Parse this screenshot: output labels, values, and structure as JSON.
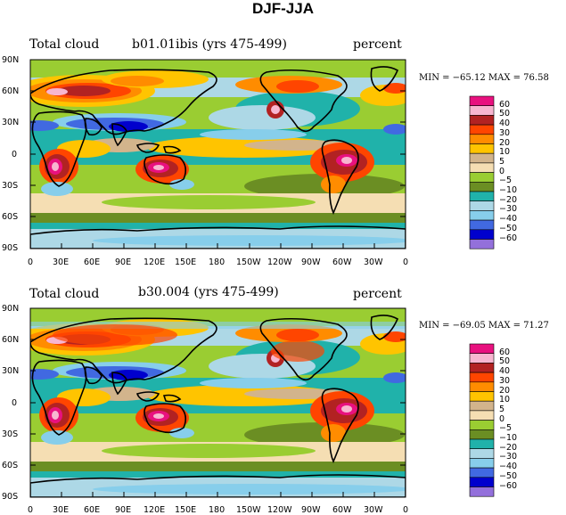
{
  "title": "DJF-JJA",
  "panels": [
    {
      "left_title": "Total cloud",
      "center_title": "b01.01ibis (yrs 475-499)",
      "right_title": "percent",
      "stats": "MIN = −65.12 MAX =   76.58"
    },
    {
      "left_title": "Total cloud",
      "center_title": "b30.004 (yrs 475-499)",
      "right_title": "percent",
      "stats": "MIN = −69.05 MAX =   71.27"
    }
  ],
  "lat_labels": [
    "90N",
    "60N",
    "30N",
    "0",
    "30S",
    "60S",
    "90S"
  ],
  "lon_labels": [
    "0",
    "30E",
    "60E",
    "90E",
    "120E",
    "150E",
    "180",
    "150W",
    "120W",
    "90W",
    "60W",
    "30W",
    "0"
  ],
  "colorbar": {
    "levels": [
      "60",
      "50",
      "40",
      "30",
      "20",
      "10",
      "5",
      "0",
      "−5",
      "−10",
      "−20",
      "−30",
      "−40",
      "−50",
      "−60"
    ],
    "colors": [
      "#e8117f",
      "#f7b6d0",
      "#b22222",
      "#ff4500",
      "#ff8c00",
      "#ffc400",
      "#d2b48c",
      "#f5deb3",
      "#9acd32",
      "#6b8e23",
      "#20b2aa",
      "#add8e6",
      "#87ceeb",
      "#4169e1",
      "#0000cd",
      "#9370db"
    ]
  },
  "palette": {
    "land_outline": "#000000",
    "ocean_base": "#20b2aa"
  }
}
